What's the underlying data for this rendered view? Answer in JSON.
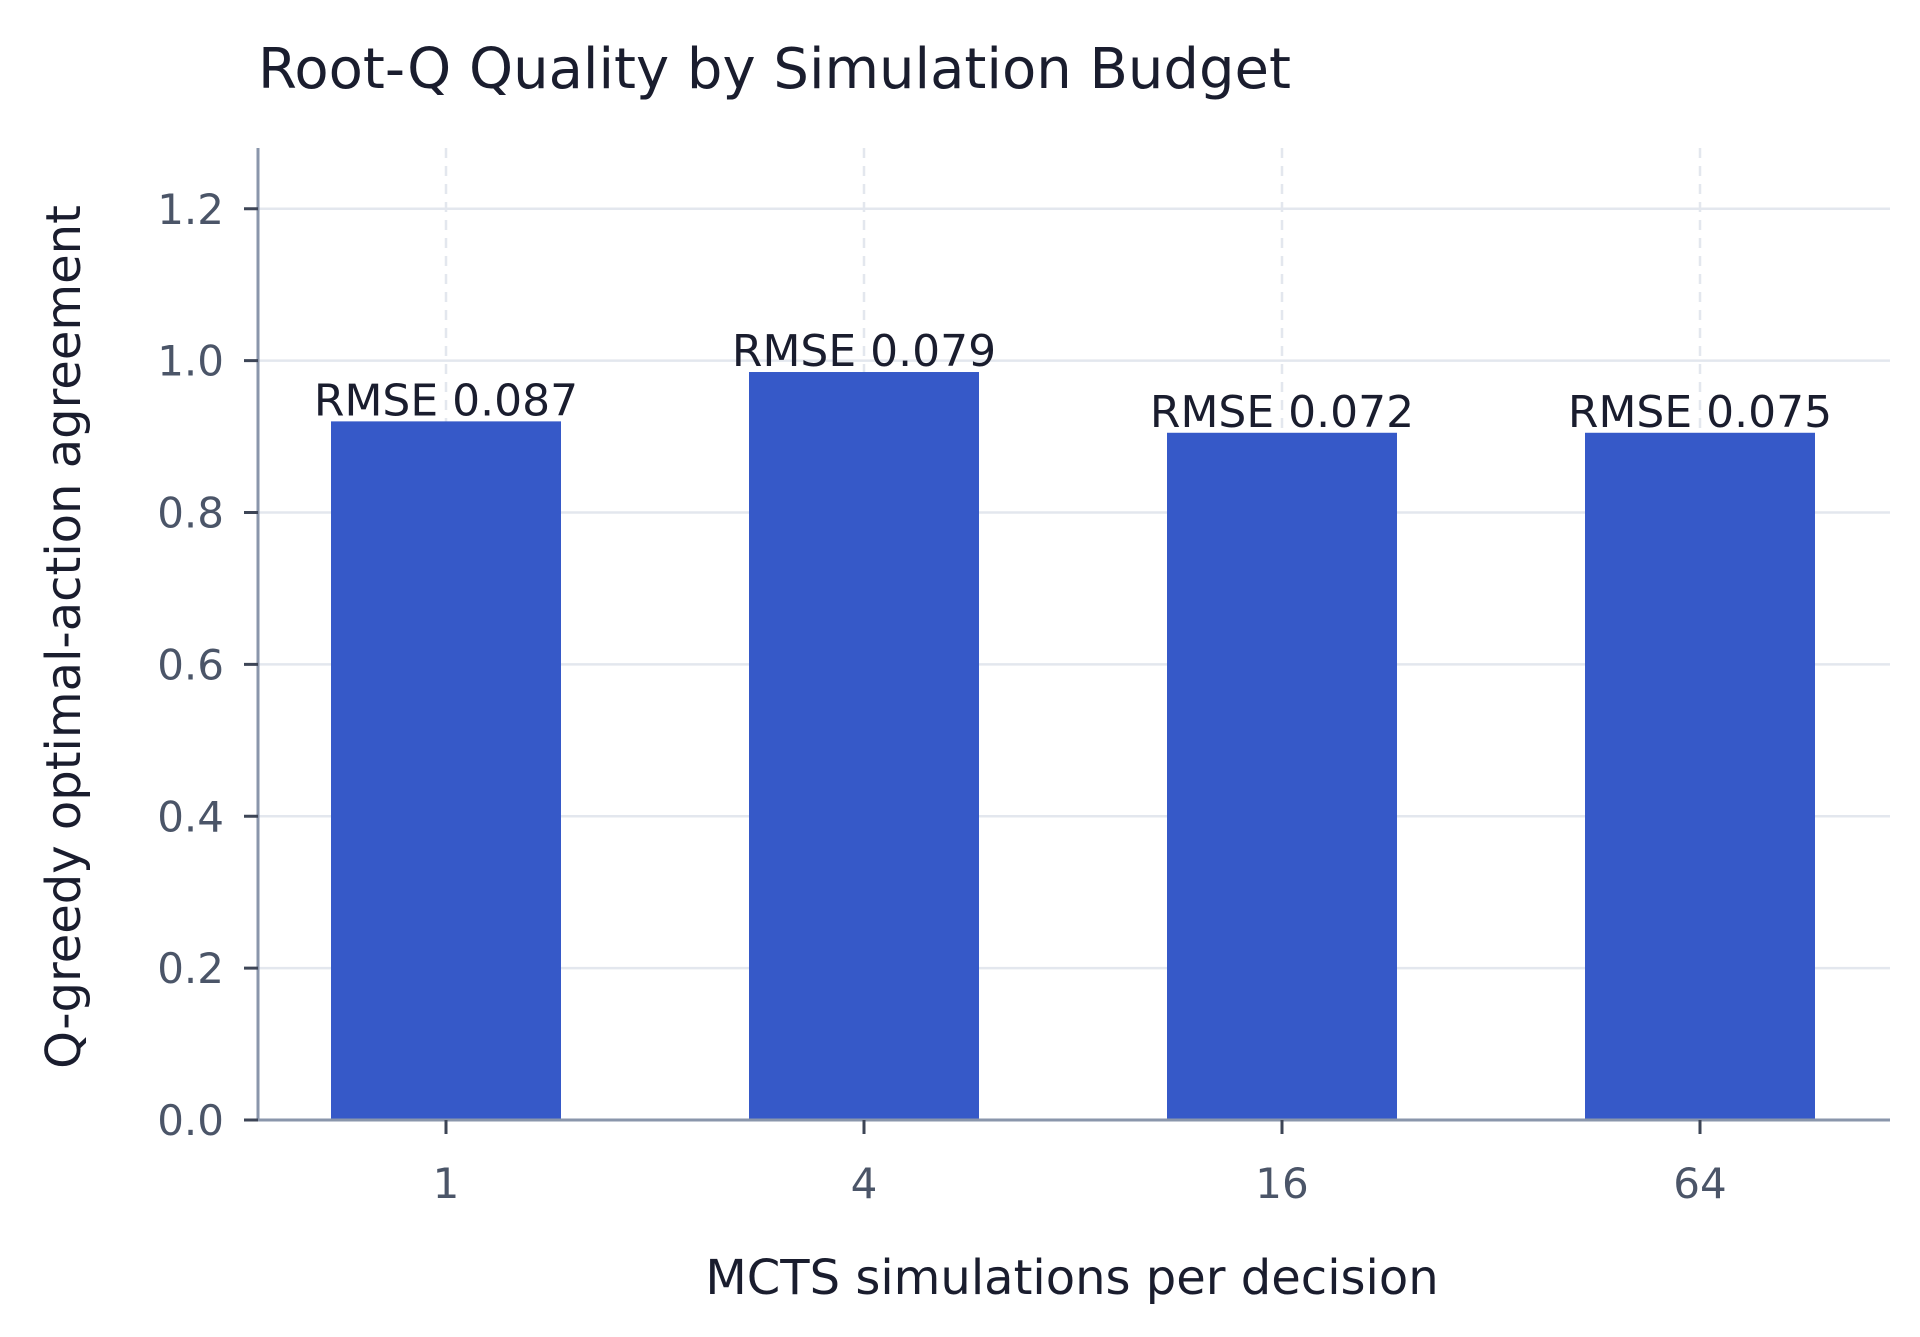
{
  "chart_data": {
    "type": "bar",
    "title": "Root-Q Quality by Simulation Budget",
    "xlabel": "MCTS simulations per decision",
    "ylabel": "Q-greedy optimal-action agreement",
    "categories": [
      "1",
      "4",
      "16",
      "64"
    ],
    "values": [
      0.92,
      0.985,
      0.905,
      0.905
    ],
    "data_labels": [
      "RMSE 0.087",
      "RMSE 0.079",
      "RMSE 0.072",
      "RMSE 0.075"
    ],
    "ylim": [
      0,
      1.28
    ],
    "yticks": [
      0.0,
      0.2,
      0.4,
      0.6,
      0.8,
      1.0,
      1.2
    ],
    "ytick_labels": [
      "0.0",
      "0.2",
      "0.4",
      "0.6",
      "0.8",
      "1.0",
      "1.2"
    ],
    "grid": true,
    "legend": "none",
    "colors": {
      "bar": "#3659c8",
      "axis": "#8a96ab",
      "grid": "#e3e7ee",
      "text": "#1a1d2e",
      "tick_text": "#4b5568"
    }
  }
}
